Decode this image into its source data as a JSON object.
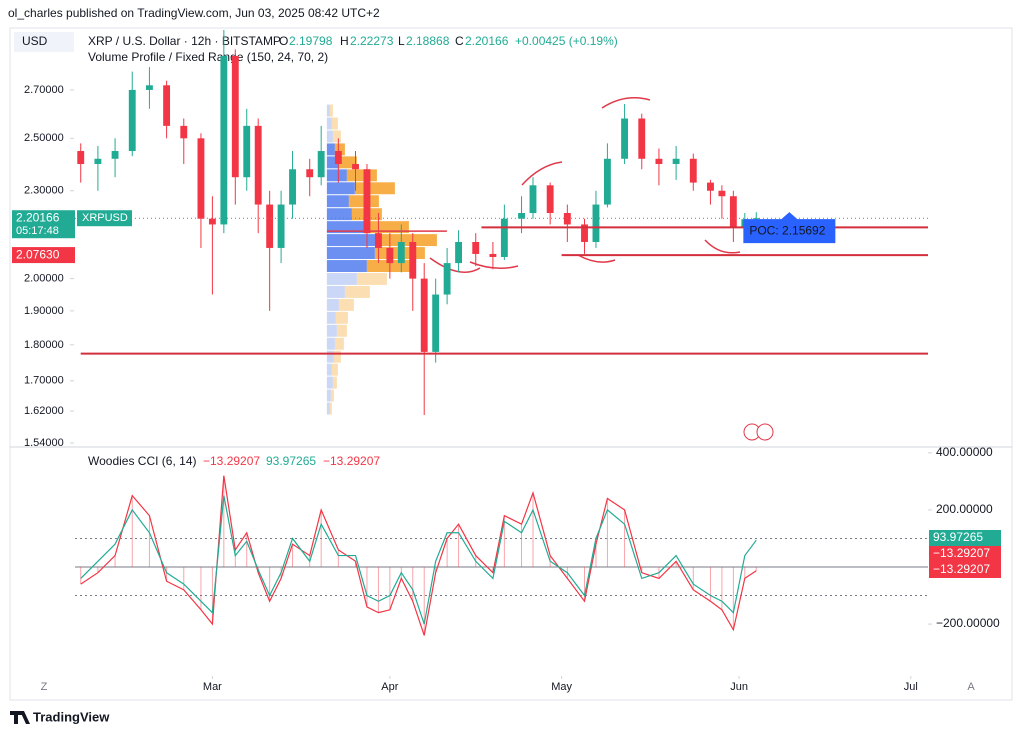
{
  "header": {
    "publisher": "ol_charles published on TradingView.com, Jun 03, 2025 08:42 UTC+2",
    "currency": "USD",
    "symbol": "XRP / U.S. Dollar · 12h · BITSTAMP",
    "o_label": "O",
    "o": "2.19798",
    "h_label": "H",
    "h": "2.22273",
    "l_label": "L",
    "l": "2.18868",
    "c_label": "C",
    "c": "2.20166",
    "change": "+0.00425 (+0.19%)",
    "indicator": "Volume Profile / Fixed Range (150, 24, 70, 2)",
    "last_price": "2.20166",
    "ticker": "XRPUSD",
    "countdown": "05:17:48",
    "line_price": "2.07630",
    "poc": "POC: 2.15692",
    "cci_name": "Woodies CCI (6, 14)",
    "cci_v1": "−13.29207",
    "cci_v2": "93.97265",
    "cci_v3": "−13.29207",
    "cci_tag1": "93.97265",
    "cci_tag2": "−13.29207",
    "cci_tag3": "−13.29207",
    "corner_left": "Z",
    "corner_right": "A",
    "brand": "TradingView"
  },
  "chart_data": [
    {
      "type": "candlestick",
      "log_scale": true,
      "up_color": "#22ab94",
      "down_color": "#f23645",
      "x": [
        36,
        39,
        42,
        45,
        48,
        51,
        54,
        57,
        59,
        61,
        63,
        65,
        67,
        69,
        71,
        73,
        76,
        78,
        81,
        84,
        86,
        88,
        90,
        92,
        94,
        96,
        98,
        100,
        102,
        105,
        108,
        110,
        113,
        115,
        118,
        121,
        124,
        126,
        128,
        131,
        134,
        137,
        140,
        143,
        146,
        148,
        150,
        152,
        154
      ],
      "open": [
        2.45,
        2.4,
        2.42,
        2.45,
        2.7,
        2.72,
        2.55,
        2.5,
        2.2,
        2.18,
        2.85,
        2.35,
        2.55,
        2.25,
        2.1,
        2.25,
        2.38,
        2.35,
        2.45,
        2.4,
        2.38,
        2.15,
        2.1,
        2.05,
        2.12,
        2.0,
        1.78,
        1.95,
        2.05,
        2.12,
        2.08,
        2.07,
        2.2,
        2.22,
        2.32,
        2.22,
        2.18,
        2.12,
        2.25,
        2.42,
        2.58,
        2.42,
        2.4,
        2.42,
        2.33,
        2.3,
        2.28,
        2.17,
        2.19798
      ],
      "high": [
        2.48,
        2.47,
        2.5,
        2.78,
        2.8,
        2.74,
        2.58,
        2.52,
        2.28,
        2.97,
        2.88,
        2.62,
        2.58,
        2.3,
        2.3,
        2.45,
        2.42,
        2.55,
        2.5,
        2.45,
        2.4,
        2.22,
        2.15,
        2.18,
        2.15,
        2.05,
        2.0,
        2.1,
        2.16,
        2.15,
        2.12,
        2.25,
        2.28,
        2.35,
        2.33,
        2.25,
        2.2,
        2.3,
        2.48,
        2.64,
        2.6,
        2.46,
        2.47,
        2.44,
        2.34,
        2.32,
        2.3,
        2.22,
        2.22273
      ],
      "low": [
        2.33,
        2.3,
        2.35,
        2.43,
        2.62,
        2.5,
        2.4,
        2.1,
        1.95,
        2.15,
        2.25,
        2.3,
        2.15,
        1.9,
        2.05,
        2.2,
        2.28,
        2.32,
        2.33,
        2.3,
        2.1,
        2.05,
        2.0,
        2.02,
        1.9,
        1.61,
        1.75,
        1.92,
        2.02,
        2.04,
        2.03,
        2.06,
        2.15,
        2.2,
        2.18,
        2.12,
        2.08,
        2.1,
        2.24,
        2.4,
        2.38,
        2.32,
        2.34,
        2.3,
        2.25,
        2.2,
        2.12,
        2.13,
        2.18868
      ],
      "close": [
        2.4,
        2.42,
        2.45,
        2.7,
        2.72,
        2.55,
        2.5,
        2.2,
        2.18,
        2.85,
        2.35,
        2.55,
        2.25,
        2.1,
        2.25,
        2.38,
        2.35,
        2.45,
        2.4,
        2.38,
        2.15,
        2.1,
        2.05,
        2.12,
        2.0,
        1.78,
        1.95,
        2.05,
        2.12,
        2.08,
        2.07,
        2.2,
        2.22,
        2.32,
        2.22,
        2.18,
        2.12,
        2.25,
        2.42,
        2.58,
        2.42,
        2.4,
        2.42,
        2.33,
        2.3,
        2.28,
        2.17,
        2.19798,
        2.20166
      ],
      "xlim": [
        35,
        184
      ],
      "ylim": [
        1.535,
        2.97
      ],
      "xticks": [
        {
          "value": 59,
          "label": "Mar"
        },
        {
          "value": 90,
          "label": "Apr"
        },
        {
          "value": 120,
          "label": "May"
        },
        {
          "value": 151,
          "label": "Jun"
        },
        {
          "value": 181,
          "label": "Jul"
        }
      ],
      "yticks": [
        {
          "value": 2.7,
          "label": "2.70000"
        },
        {
          "value": 2.5,
          "label": "2.50000"
        },
        {
          "value": 2.3,
          "label": "2.30000"
        },
        {
          "value": 2.0,
          "label": "2.00000"
        },
        {
          "value": 1.9,
          "label": "1.90000"
        },
        {
          "value": 1.8,
          "label": "1.80000"
        },
        {
          "value": 1.7,
          "label": "1.70000"
        },
        {
          "value": 1.62,
          "label": "1.62000"
        },
        {
          "value": 1.54,
          "label": "1.54000"
        }
      ],
      "last_price": 2.20166,
      "line_price": 2.0763,
      "poc": 2.15692,
      "hlines": [
        {
          "price": 2.17,
          "x_start": 106
        },
        {
          "price": 2.0763,
          "x_start": 120
        },
        {
          "price": 1.775,
          "x_start": 36
        }
      ],
      "volume_profile": {
        "x_start": 79,
        "range": [
          1.61,
          2.64
        ],
        "value_area": [
          2.0,
          2.45
        ],
        "up": [
          3,
          4,
          6,
          5,
          7,
          8,
          10,
          9,
          12,
          18,
          30,
          40,
          48,
          50,
          40,
          25,
          22,
          28,
          20,
          12,
          8,
          6,
          5,
          3
        ],
        "down": [
          2,
          3,
          4,
          6,
          7,
          9,
          10,
          12,
          15,
          25,
          30,
          45,
          50,
          60,
          42,
          30,
          30,
          40,
          30,
          18,
          10,
          8,
          6,
          3
        ],
        "colors": {
          "up_in": "#5b84f0",
          "down_in": "#f7a533",
          "up_out": "#c5d3f6",
          "down_out": "#fbdaa8"
        }
      }
    },
    {
      "type": "line",
      "xlim": [
        35,
        184
      ],
      "ylim": [
        -354,
        417
      ],
      "x": [
        36,
        39,
        42,
        45,
        48,
        51,
        54,
        57,
        59,
        61,
        63,
        65,
        67,
        69,
        71,
        73,
        76,
        78,
        81,
        84,
        86,
        88,
        90,
        92,
        94,
        96,
        98,
        100,
        102,
        105,
        108,
        110,
        113,
        115,
        118,
        121,
        124,
        126,
        128,
        131,
        134,
        137,
        140,
        143,
        146,
        148,
        150,
        152,
        154
      ],
      "yticks": [
        {
          "value": 400,
          "label": "400.00000"
        },
        {
          "value": 200,
          "label": "200.00000"
        },
        {
          "value": -200,
          "label": "−200.00000"
        }
      ],
      "levels": [
        100,
        0,
        -100
      ],
      "series": [
        {
          "color": "#f23645",
          "histogram": true,
          "values": [
            -60,
            -20,
            40,
            250,
            180,
            -50,
            -80,
            -150,
            -200,
            320,
            60,
            120,
            -20,
            -120,
            -40,
            80,
            40,
            200,
            60,
            20,
            -140,
            -160,
            -150,
            -40,
            -120,
            -240,
            -20,
            100,
            150,
            40,
            -20,
            180,
            150,
            260,
            40,
            -40,
            -120,
            80,
            240,
            200,
            -20,
            -40,
            20,
            -80,
            -120,
            -150,
            -220,
            -40,
            -13.29207
          ]
        },
        {
          "color": "#22ab94",
          "histogram": false,
          "values": [
            -40,
            20,
            80,
            200,
            120,
            -20,
            -60,
            -120,
            -160,
            250,
            40,
            90,
            -10,
            -100,
            -20,
            100,
            20,
            150,
            40,
            40,
            -100,
            -120,
            -100,
            -20,
            -80,
            -200,
            20,
            120,
            120,
            20,
            -40,
            160,
            120,
            200,
            20,
            -20,
            -100,
            100,
            200,
            150,
            -40,
            -20,
            40,
            -60,
            -100,
            -120,
            -160,
            40,
            93.97265
          ]
        }
      ]
    }
  ]
}
